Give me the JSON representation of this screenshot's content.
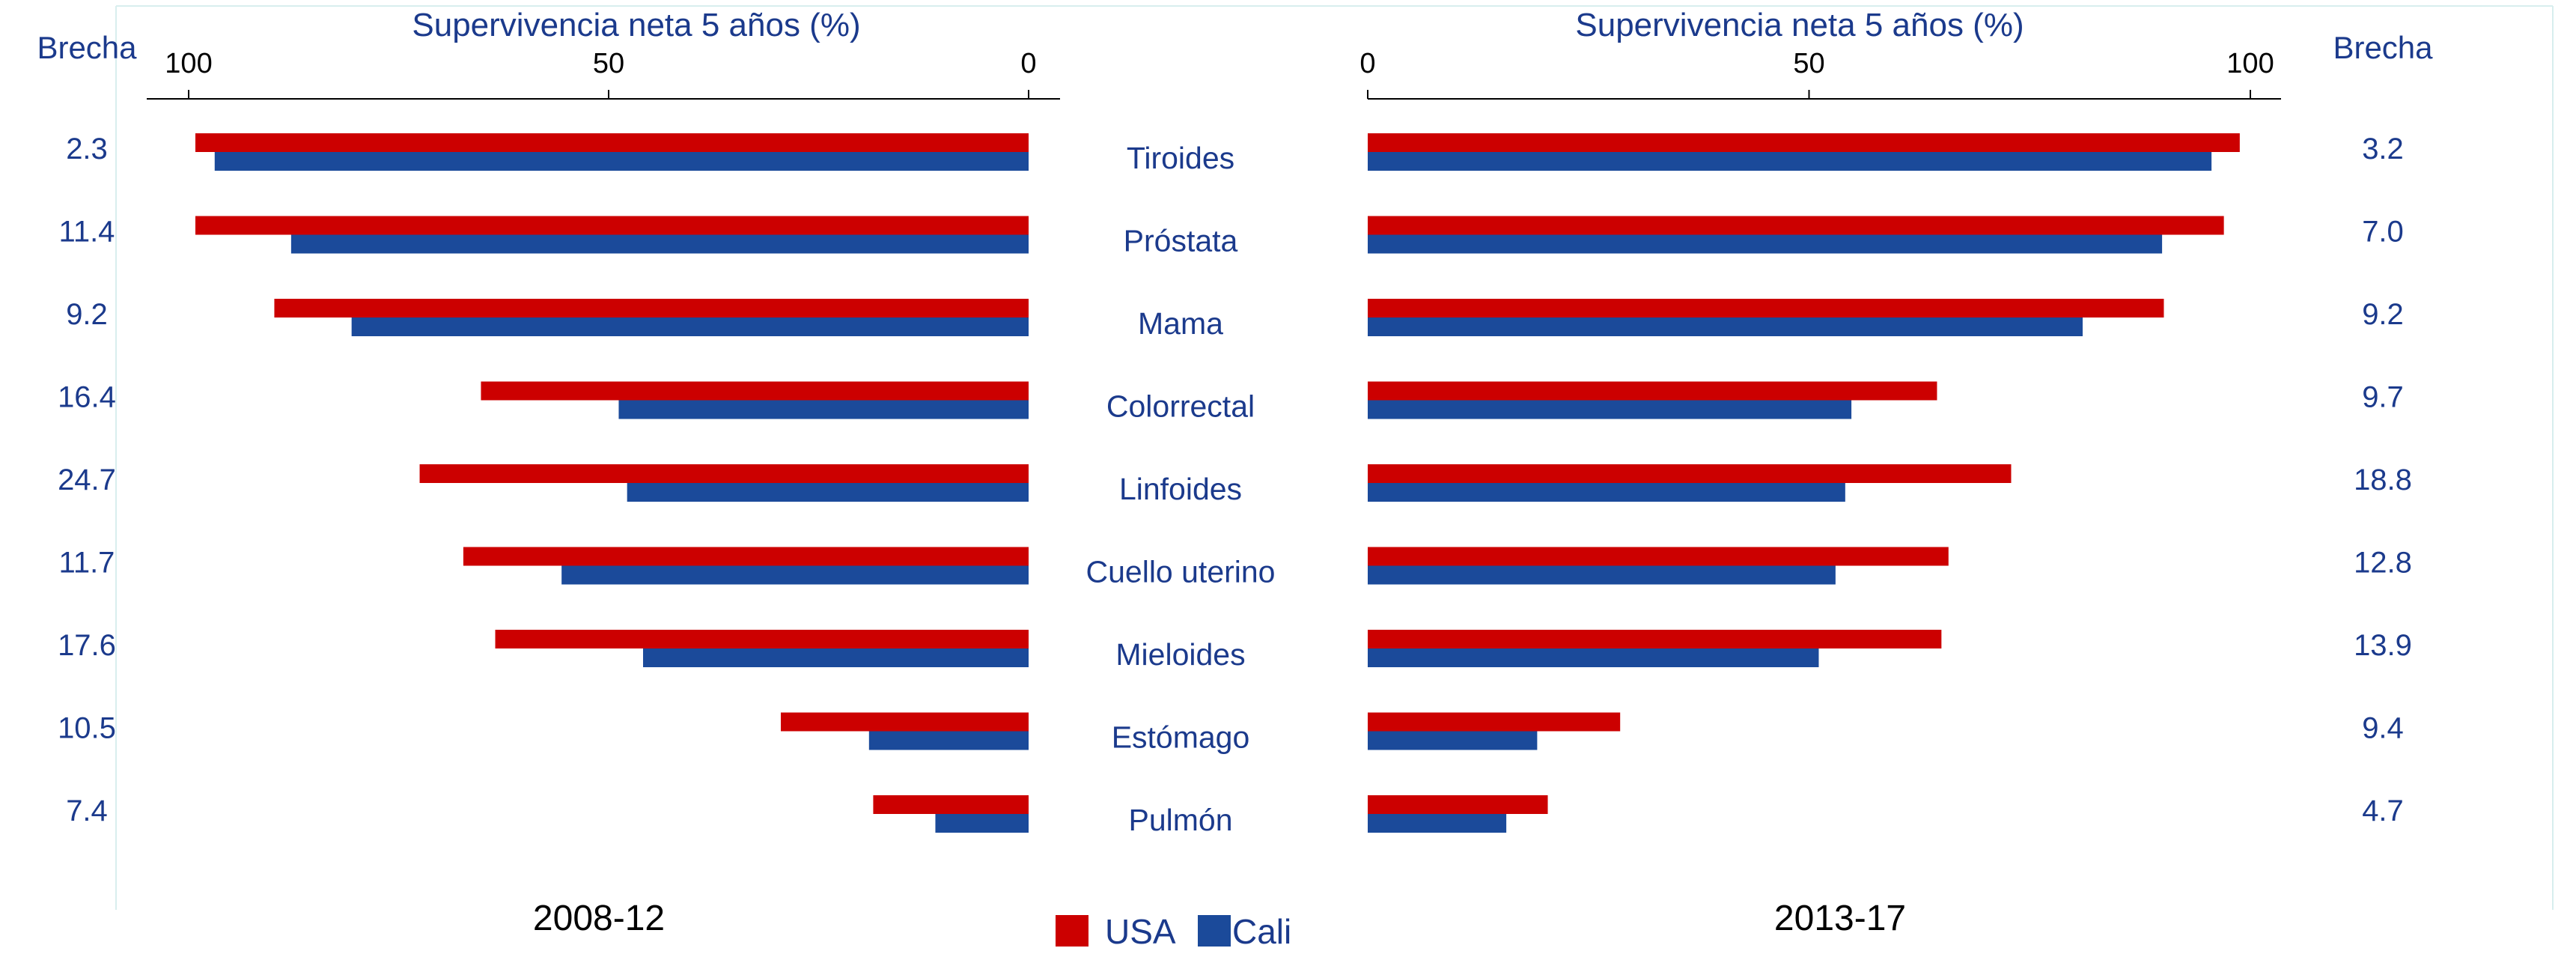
{
  "chart_data": {
    "type": "bar",
    "orientation": "horizontal",
    "categories": [
      "Tiroides",
      "Próstata",
      "Mama",
      "Colorrectal",
      "Linfoides",
      "Cuello uterino",
      "Mieloides",
      "Estómago",
      "Pulmón"
    ],
    "legend": {
      "placement": "bottom-center",
      "entries": [
        {
          "name": "USA",
          "color": "#cc0000"
        },
        {
          "name": "Cali",
          "color": "#1b4a9a"
        }
      ]
    },
    "text_color": "#1b3a8c",
    "axis_color": "#000000",
    "panels": [
      {
        "period": "2008-12",
        "xlabel": "Supervivencia neta 5 años (%)",
        "xlim": [
          0,
          100
        ],
        "xticks": [
          100,
          50,
          0
        ],
        "reversed": true,
        "gap_header": "Brecha",
        "series": [
          {
            "name": "USA",
            "values": [
              99.2,
              99.2,
              89.8,
              65.2,
              72.5,
              67.3,
              63.5,
              29.5,
              18.5
            ]
          },
          {
            "name": "Cali",
            "values": [
              96.9,
              87.8,
              80.6,
              48.8,
              47.8,
              55.6,
              45.9,
              19.0,
              11.1
            ]
          }
        ],
        "gap": [
          "2.3",
          "11.4",
          "9.2",
          "16.4",
          "24.7",
          "11.7",
          "17.6",
          "10.5",
          "7.4"
        ]
      },
      {
        "period": "2013-17",
        "xlabel": "Supervivencia neta 5 años (%)",
        "xlim": [
          0,
          100
        ],
        "xticks": [
          0,
          50,
          100
        ],
        "reversed": false,
        "gap_header": "Brecha",
        "series": [
          {
            "name": "USA",
            "values": [
              98.8,
              97.0,
              90.2,
              64.5,
              72.9,
              65.8,
              65.0,
              28.6,
              20.4
            ]
          },
          {
            "name": "Cali",
            "values": [
              95.6,
              90.0,
              81.0,
              54.8,
              54.1,
              53.0,
              51.1,
              19.2,
              15.7
            ]
          }
        ],
        "gap": [
          "3.2",
          "7.0",
          "9.2",
          "9.7",
          "18.8",
          "12.8",
          "13.9",
          "9.4",
          "4.7"
        ]
      }
    ]
  }
}
